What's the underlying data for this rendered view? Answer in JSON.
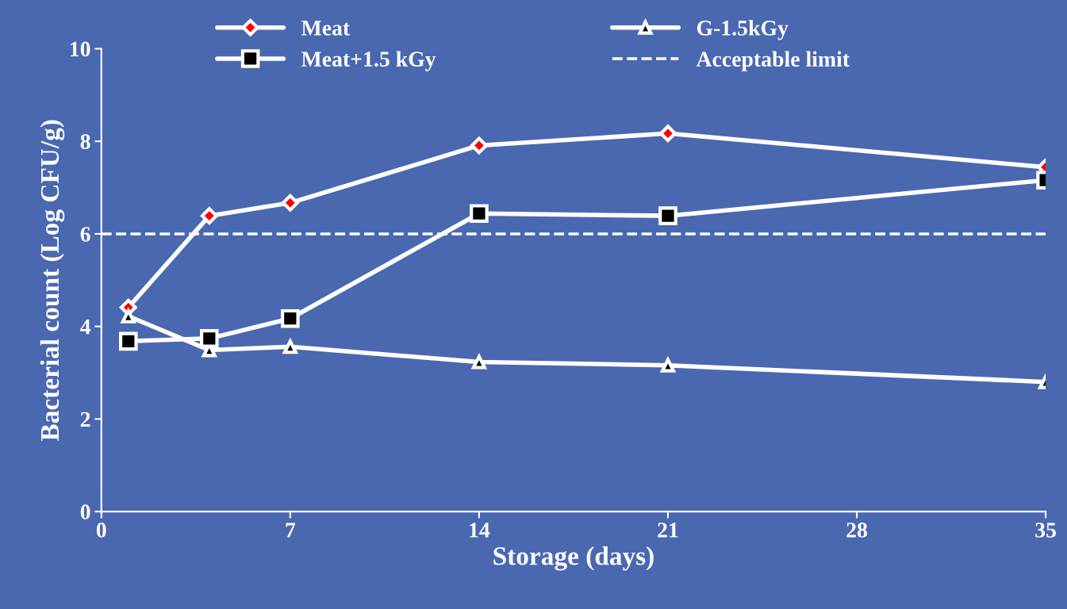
{
  "chart_data": {
    "type": "line",
    "xlabel": "Storage (days)",
    "ylabel": "Bacterial count (Log CFU/g)",
    "x": [
      1,
      4,
      7,
      14,
      21,
      35
    ],
    "series": [
      {
        "name": "Meat",
        "color": "#ffffff",
        "marker": "diamond",
        "values": [
          4.41,
          6.39,
          6.67,
          7.91,
          8.17,
          7.44
        ]
      },
      {
        "name": "G-1.5kGy",
        "color": "#ffffff",
        "marker": "triangle",
        "values": [
          4.22,
          3.49,
          3.56,
          3.23,
          3.16,
          2.8
        ]
      },
      {
        "name": "Meat+1.5 kGy",
        "color": "#ffffff",
        "marker": "square",
        "values": [
          3.68,
          3.74,
          4.17,
          6.44,
          6.39,
          7.16
        ]
      }
    ],
    "ref_lines": [
      {
        "axis": "y",
        "value": 6,
        "label": "Acceptable limit",
        "color": "#ffffff",
        "line_style": "dashed"
      }
    ],
    "xlim": [
      0,
      35
    ],
    "xticks": [
      0,
      7,
      14,
      21,
      28,
      35
    ],
    "ylim": [
      0,
      10
    ],
    "yticks": [
      0,
      2,
      4,
      6,
      8,
      10
    ],
    "grid": false,
    "legend": "top",
    "line_style": "solid"
  }
}
